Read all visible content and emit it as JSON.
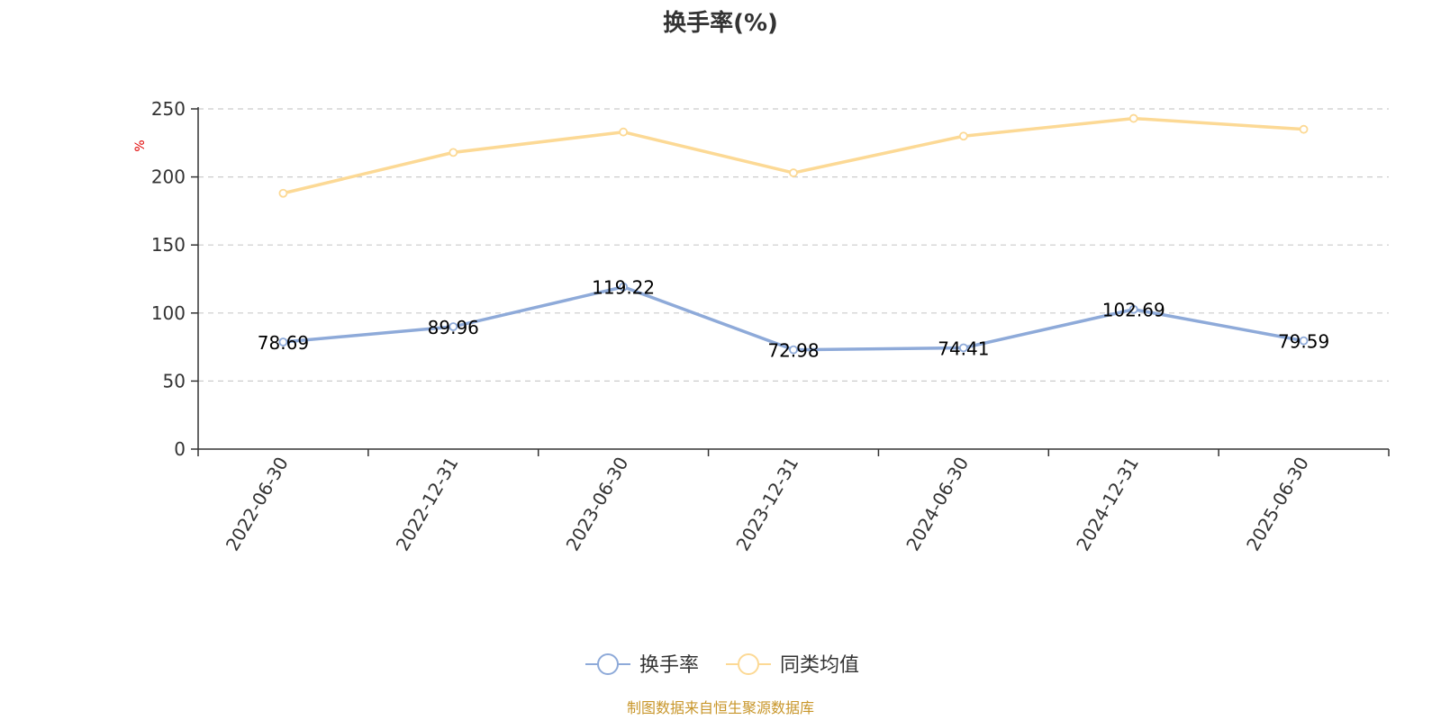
{
  "chart_data": {
    "type": "line",
    "title": "换手率(%)",
    "ylabel": "%",
    "xlabel": "",
    "categories": [
      "2022-06-30",
      "2022-12-31",
      "2023-06-30",
      "2023-12-31",
      "2024-06-30",
      "2024-12-31",
      "2025-06-30"
    ],
    "ylim": [
      0,
      250
    ],
    "yticks": [
      0,
      50,
      100,
      150,
      200,
      250
    ],
    "grid": true,
    "legend_position": "bottom",
    "series": [
      {
        "name": "换手率",
        "color": "#8eaad9",
        "values": [
          78.69,
          89.96,
          119.22,
          72.98,
          74.41,
          102.69,
          79.59
        ],
        "data_labels": [
          "78.69",
          "89.96",
          "119.22",
          "72.98",
          "74.41",
          "102.69",
          "79.59"
        ]
      },
      {
        "name": "同类均值",
        "color": "#fcd995",
        "values": [
          188,
          218,
          233,
          203,
          230,
          243,
          235
        ]
      }
    ]
  },
  "source_note": "制图数据来自恒生聚源数据库"
}
